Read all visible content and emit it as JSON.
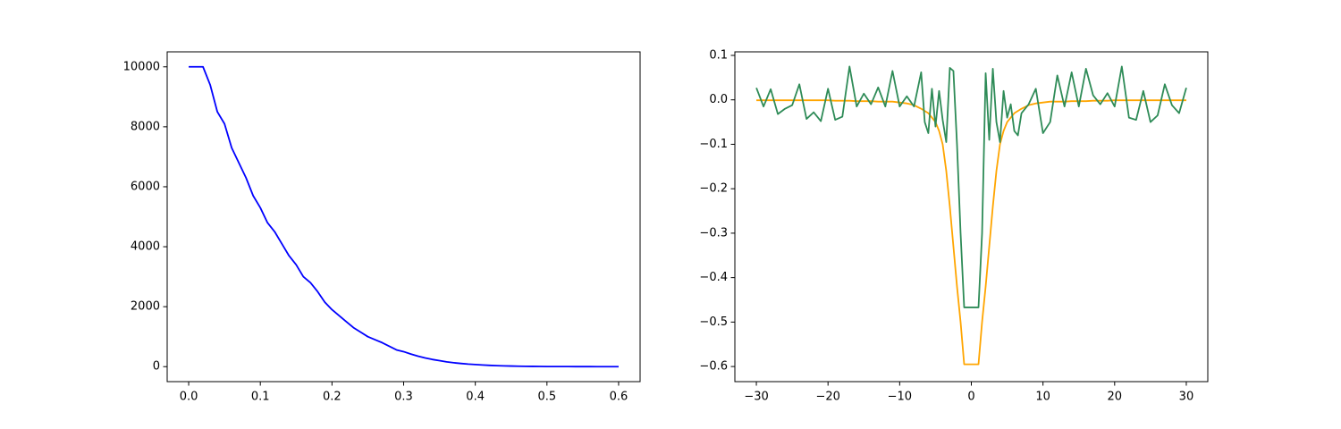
{
  "chart_data": [
    {
      "type": "line",
      "x": [
        0,
        0.01,
        0.02,
        0.03,
        0.04,
        0.05,
        0.06,
        0.07,
        0.08,
        0.09,
        0.1,
        0.11,
        0.12,
        0.13,
        0.14,
        0.15,
        0.16,
        0.17,
        0.18,
        0.19,
        0.2,
        0.21,
        0.22,
        0.23,
        0.24,
        0.25,
        0.26,
        0.27,
        0.28,
        0.29,
        0.3,
        0.31,
        0.32,
        0.33,
        0.34,
        0.35,
        0.36,
        0.37,
        0.38,
        0.39,
        0.4,
        0.41,
        0.42,
        0.43,
        0.44,
        0.45,
        0.46,
        0.47,
        0.48,
        0.49,
        0.5,
        0.51,
        0.52,
        0.53,
        0.54,
        0.55,
        0.56,
        0.57,
        0.58,
        0.59,
        0.6
      ],
      "values": [
        10000,
        10000,
        10000,
        9400,
        8500,
        8100,
        7300,
        6800,
        6300,
        5700,
        5300,
        4800,
        4500,
        4100,
        3700,
        3400,
        3000,
        2800,
        2500,
        2150,
        1900,
        1700,
        1500,
        1300,
        1150,
        1000,
        900,
        800,
        680,
        560,
        500,
        420,
        350,
        290,
        240,
        200,
        160,
        130,
        105,
        85,
        70,
        55,
        42,
        33,
        26,
        20,
        15,
        11,
        8,
        6,
        4,
        3,
        2,
        2,
        1,
        1,
        1,
        0,
        0,
        0,
        0
      ],
      "color": "#0000ff",
      "xlim": [
        -0.03,
        0.63
      ],
      "xticks": [
        {
          "value": 0,
          "label": "0.0"
        },
        {
          "value": 0.1,
          "label": "0.1"
        },
        {
          "value": 0.2,
          "label": "0.2"
        },
        {
          "value": 0.3,
          "label": "0.3"
        },
        {
          "value": 0.4,
          "label": "0.4"
        },
        {
          "value": 0.5,
          "label": "0.5"
        },
        {
          "value": 0.6,
          "label": "0.6"
        }
      ],
      "ylim": [
        -500,
        10500
      ],
      "yticks": [
        0,
        2000,
        4000,
        6000,
        8000,
        10000
      ]
    },
    {
      "type": "line",
      "x": [
        -30,
        -29,
        -28,
        -27,
        -26,
        -25,
        -24,
        -23,
        -22,
        -21,
        -20,
        -19,
        -18,
        -17,
        -16,
        -15,
        -14,
        -13,
        -12,
        -11,
        -10,
        -9,
        -8,
        -7,
        -6.5,
        -6,
        -5.5,
        -5,
        -4.5,
        -4,
        -3.5,
        -3,
        -2.5,
        -2,
        -1.5,
        -1,
        1,
        1.5,
        2,
        2.5,
        3,
        3.5,
        4,
        4.5,
        5,
        5.5,
        6,
        6.5,
        7,
        8,
        9,
        10,
        11,
        12,
        13,
        14,
        15,
        16,
        17,
        18,
        19,
        20,
        21,
        22,
        23,
        24,
        25,
        26,
        27,
        28,
        29,
        30
      ],
      "series": [
        {
          "color": "#ffa500",
          "values": [
            -0.001,
            -0.001,
            -0.001,
            -0.001,
            -0.001,
            -0.001,
            -0.001,
            -0.001,
            -0.001,
            -0.001,
            -0.001,
            -0.002,
            -0.002,
            -0.002,
            -0.003,
            -0.003,
            -0.003,
            -0.004,
            -0.004,
            -0.004,
            -0.006,
            -0.008,
            -0.012,
            -0.02,
            -0.025,
            -0.03,
            -0.04,
            -0.05,
            -0.07,
            -0.1,
            -0.16,
            -0.24,
            -0.33,
            -0.42,
            -0.5,
            -0.595,
            -0.595,
            -0.5,
            -0.42,
            -0.33,
            -0.24,
            -0.16,
            -0.1,
            -0.07,
            -0.05,
            -0.04,
            -0.03,
            -0.025,
            -0.02,
            -0.012,
            -0.008,
            -0.006,
            -0.004,
            -0.004,
            -0.004,
            -0.003,
            -0.003,
            -0.003,
            -0.002,
            -0.002,
            -0.002,
            -0.001,
            -0.001,
            -0.001,
            -0.001,
            -0.001,
            -0.001,
            -0.001,
            -0.001,
            -0.001,
            -0.001,
            -0.001
          ]
        },
        {
          "color": "#2e8b57",
          "values": [
            0.027,
            -0.015,
            0.024,
            -0.032,
            -0.02,
            -0.012,
            0.035,
            -0.043,
            -0.028,
            -0.048,
            0.025,
            -0.045,
            -0.038,
            0.075,
            -0.015,
            0.014,
            -0.01,
            0.028,
            -0.015,
            0.065,
            -0.015,
            0.008,
            -0.015,
            0.062,
            -0.05,
            -0.075,
            0.025,
            -0.06,
            0.02,
            -0.045,
            -0.095,
            0.072,
            0.065,
            -0.1,
            -0.3,
            -0.467,
            -0.467,
            -0.3,
            0.06,
            -0.09,
            0.07,
            -0.05,
            -0.095,
            0.02,
            -0.04,
            -0.01,
            -0.07,
            -0.08,
            -0.03,
            -0.01,
            0.025,
            -0.075,
            -0.05,
            0.055,
            -0.015,
            0.062,
            -0.015,
            0.07,
            0.01,
            -0.01,
            0.015,
            -0.015,
            0.075,
            -0.04,
            -0.045,
            0.02,
            -0.05,
            -0.035,
            0.035,
            -0.012,
            -0.03,
            0.027
          ]
        }
      ],
      "xlim": [
        -33,
        33
      ],
      "xticks": [
        {
          "value": -30,
          "label": "−30"
        },
        {
          "value": -20,
          "label": "−20"
        },
        {
          "value": -10,
          "label": "−10"
        },
        0,
        10,
        20,
        30
      ],
      "ylim": [
        -0.634,
        0.108
      ],
      "yticks": [
        {
          "value": 0.1,
          "label": "0.1"
        },
        {
          "value": 0,
          "label": "0.0"
        },
        {
          "value": -0.1,
          "label": "−0.1"
        },
        {
          "value": -0.2,
          "label": "−0.2"
        },
        {
          "value": -0.3,
          "label": "−0.3"
        },
        {
          "value": -0.4,
          "label": "−0.4"
        },
        {
          "value": -0.5,
          "label": "−0.5"
        },
        {
          "value": -0.6,
          "label": "−0.6"
        }
      ]
    }
  ]
}
